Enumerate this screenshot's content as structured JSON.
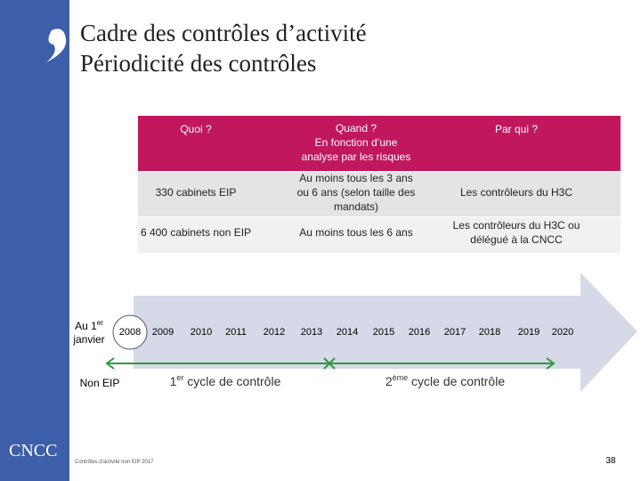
{
  "header": {
    "title_line1": "Cadre des contrôles d’activité",
    "title_line2": "Périodicité des contrôles"
  },
  "table": {
    "columns": [
      "Quoi ?",
      [
        "Quand ?",
        "En fonction d’une",
        "analyse par les risques"
      ],
      "Par qui ?"
    ],
    "rows": [
      [
        "330 cabinets EIP",
        [
          "Au moins tous les 3 ans",
          "ou 6 ans (selon taille des",
          "mandats)"
        ],
        "Les contrôleurs du H3C"
      ],
      [
        "6 400 cabinets non EIP",
        "Au moins tous les 6 ans",
        [
          "Les contrôleurs du H3C ou",
          "délégué à la CNCC"
        ]
      ]
    ]
  },
  "timeline": {
    "start_label": {
      "line1": "Au 1",
      "sup": "er",
      "line2": "janvier"
    },
    "years": [
      "2008",
      "2009",
      "2010",
      "2011",
      "2012",
      "2013",
      "2014",
      "2015",
      "2016",
      "2017",
      "2018",
      "2019",
      "2020"
    ],
    "group_label": "Non EIP",
    "cycles": [
      {
        "number": "1",
        "sup": "er",
        "text": " cycle de contrôle"
      },
      {
        "number": "2",
        "sup": "ème",
        "text": " cycle de contrôle"
      }
    ]
  },
  "footer": {
    "logo": "CNCC",
    "note": "Contrôles d'activité non EIP 2017",
    "page_number": "38"
  }
}
